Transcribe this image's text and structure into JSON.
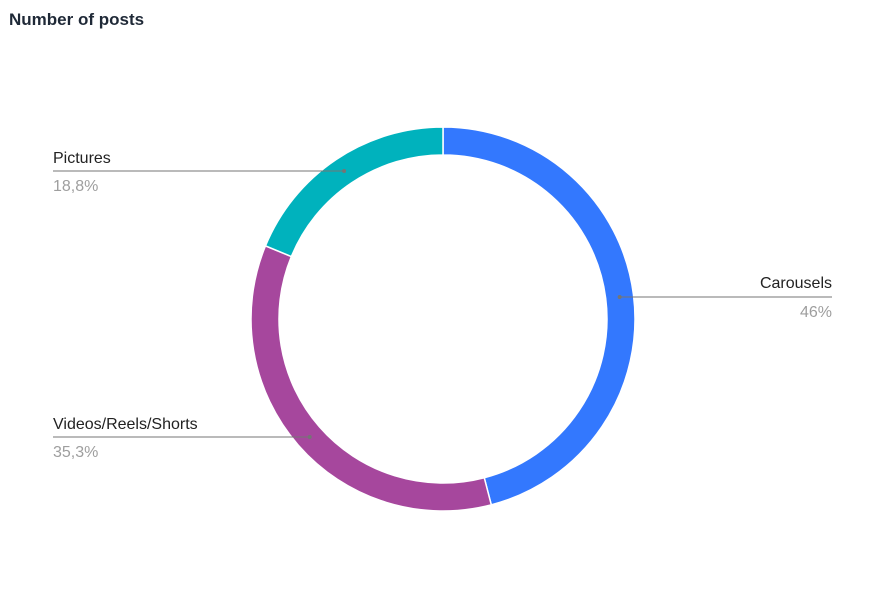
{
  "chart_data": {
    "type": "pie",
    "style": "donut",
    "title": "Number of posts",
    "slices": [
      {
        "label": "Carousels",
        "value": 46.0,
        "display": "46%",
        "color": "#3378fe"
      },
      {
        "label": "Videos/Reels/Shorts",
        "value": 35.3,
        "display": "35,3%",
        "color": "#a6479d"
      },
      {
        "label": "Pictures",
        "value": 18.8,
        "display": "18,8%",
        "color": "#00b2bd"
      }
    ],
    "legend": "none"
  }
}
